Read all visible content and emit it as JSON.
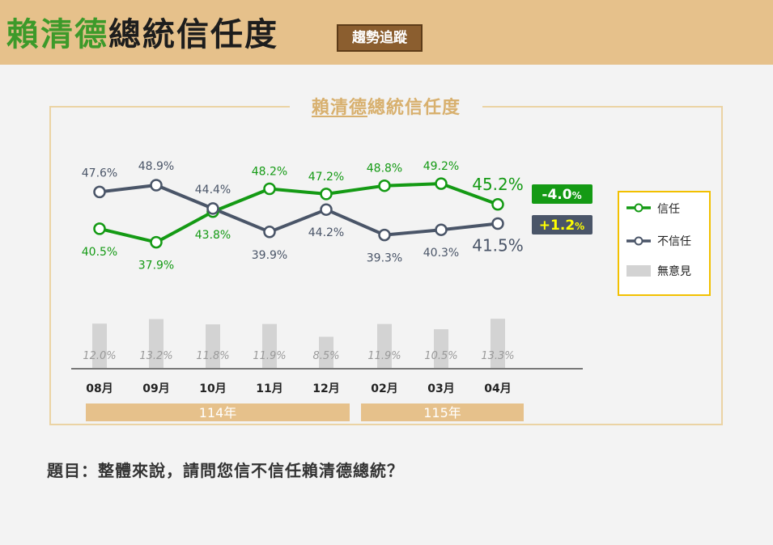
{
  "header": {
    "title_part1": "賴清德",
    "title_part2": "總統信任度",
    "badge": "趨勢追蹤"
  },
  "colors": {
    "trust": "#149a14",
    "distrust": "#4a5568",
    "no_opinion": "#d3d3d3",
    "legend_border": "#f2c000",
    "year_bar": "#e6c18b"
  },
  "chart_data": {
    "type": "line",
    "title": "賴清德總統信任度",
    "categories": [
      "08月",
      "09月",
      "10月",
      "11月",
      "12月",
      "02月",
      "03月",
      "04月"
    ],
    "year_groups": [
      {
        "label": "114年",
        "months": [
          "08月",
          "09月",
          "10月",
          "11月",
          "12月"
        ]
      },
      {
        "label": "115年",
        "months": [
          "02月",
          "03月",
          "04月"
        ]
      }
    ],
    "series": [
      {
        "name": "信任",
        "type": "line",
        "values": [
          40.5,
          37.9,
          43.8,
          48.2,
          47.2,
          48.8,
          49.2,
          45.2
        ],
        "labels": [
          "40.5%",
          "37.9%",
          "43.8%",
          "48.2%",
          "47.2%",
          "48.8%",
          "49.2%",
          "45.2%"
        ]
      },
      {
        "name": "不信任",
        "type": "line",
        "values": [
          47.6,
          48.9,
          44.4,
          39.9,
          44.2,
          39.3,
          40.3,
          41.5
        ],
        "labels": [
          "47.6%",
          "48.9%",
          "44.4%",
          "39.9%",
          "44.2%",
          "39.3%",
          "40.3%",
          "41.5%"
        ]
      },
      {
        "name": "無意見",
        "type": "bar",
        "values": [
          12.0,
          13.2,
          11.8,
          11.9,
          8.5,
          11.9,
          10.5,
          13.3
        ],
        "labels": [
          "12.0%",
          "13.2%",
          "11.8%",
          "11.9%",
          "8.5%",
          "11.9%",
          "10.5%",
          "13.3%"
        ]
      }
    ],
    "change_badges": [
      {
        "series": "信任",
        "value": "-4.0",
        "unit": "%"
      },
      {
        "series": "不信任",
        "value": "+1.2",
        "unit": "%"
      }
    ],
    "legend_position": "right",
    "grid": false
  },
  "question": "題目：整體來說，請問您信不信任賴清德總統？"
}
